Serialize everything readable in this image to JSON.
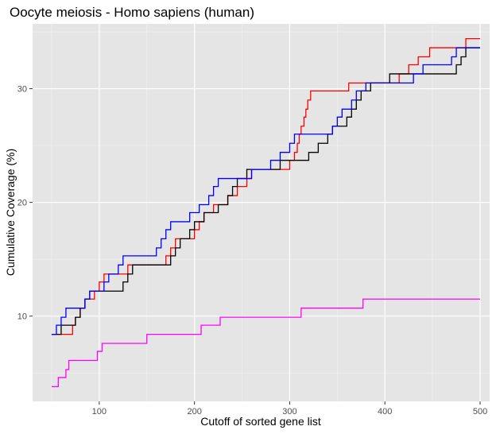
{
  "chart_data": {
    "type": "line",
    "title": "Oocyte meiosis - Homo sapiens (human)",
    "xlabel": "Cutoff of sorted gene list",
    "ylabel": "Cumulative Coverage (%)",
    "xlim": [
      30,
      510
    ],
    "ylim": [
      2.5,
      35.7
    ],
    "x_ticks": [
      100,
      200,
      300,
      400,
      500
    ],
    "y_ticks": [
      10,
      20,
      30
    ],
    "grid": true,
    "background": "#e5e5e5",
    "legend": "none",
    "series": [
      {
        "color": "#ff0000",
        "points": [
          [
            50,
            8.4
          ],
          [
            60,
            8.4
          ],
          [
            70,
            8.4
          ],
          [
            72,
            9.2
          ],
          [
            75,
            9.9
          ],
          [
            80,
            10.7
          ],
          [
            85,
            11.5
          ],
          [
            90,
            11.5
          ],
          [
            95,
            12.2
          ],
          [
            100,
            13.0
          ],
          [
            105,
            13.7
          ],
          [
            125,
            13.7
          ],
          [
            130,
            14.5
          ],
          [
            165,
            14.5
          ],
          [
            170,
            15.3
          ],
          [
            175,
            16.0
          ],
          [
            180,
            16.8
          ],
          [
            195,
            16.8
          ],
          [
            200,
            17.6
          ],
          [
            205,
            18.3
          ],
          [
            210,
            19.1
          ],
          [
            220,
            19.8
          ],
          [
            235,
            20.6
          ],
          [
            245,
            21.4
          ],
          [
            255,
            22.1
          ],
          [
            260,
            22.9
          ],
          [
            295,
            22.9
          ],
          [
            300,
            23.7
          ],
          [
            305,
            24.4
          ],
          [
            308,
            25.2
          ],
          [
            310,
            26.0
          ],
          [
            312,
            26.7
          ],
          [
            315,
            27.5
          ],
          [
            317,
            28.2
          ],
          [
            319,
            29.0
          ],
          [
            322,
            29.8
          ],
          [
            360,
            29.8
          ],
          [
            362,
            30.5
          ],
          [
            410,
            30.5
          ],
          [
            415,
            31.3
          ],
          [
            425,
            32.1
          ],
          [
            435,
            32.8
          ],
          [
            447,
            33.6
          ],
          [
            480,
            33.6
          ],
          [
            485,
            34.4
          ],
          [
            500,
            34.4
          ]
        ]
      },
      {
        "color": "#000000",
        "points": [
          [
            50,
            8.4
          ],
          [
            55,
            8.4
          ],
          [
            60,
            9.2
          ],
          [
            70,
            9.2
          ],
          [
            75,
            9.9
          ],
          [
            80,
            10.7
          ],
          [
            85,
            11.5
          ],
          [
            90,
            12.2
          ],
          [
            120,
            12.2
          ],
          [
            125,
            13.0
          ],
          [
            130,
            13.7
          ],
          [
            135,
            14.5
          ],
          [
            170,
            14.5
          ],
          [
            175,
            15.3
          ],
          [
            180,
            16.0
          ],
          [
            185,
            16.8
          ],
          [
            195,
            17.6
          ],
          [
            200,
            18.3
          ],
          [
            210,
            19.1
          ],
          [
            225,
            19.8
          ],
          [
            235,
            20.6
          ],
          [
            240,
            21.4
          ],
          [
            245,
            22.1
          ],
          [
            255,
            22.9
          ],
          [
            285,
            22.9
          ],
          [
            290,
            23.7
          ],
          [
            315,
            23.7
          ],
          [
            320,
            24.4
          ],
          [
            330,
            25.2
          ],
          [
            340,
            26.0
          ],
          [
            345,
            26.7
          ],
          [
            355,
            26.7
          ],
          [
            360,
            27.5
          ],
          [
            365,
            28.2
          ],
          [
            370,
            29.0
          ],
          [
            375,
            29.8
          ],
          [
            385,
            30.5
          ],
          [
            400,
            30.5
          ],
          [
            405,
            31.3
          ],
          [
            470,
            31.3
          ],
          [
            475,
            32.1
          ],
          [
            480,
            32.8
          ],
          [
            485,
            33.6
          ],
          [
            500,
            33.6
          ]
        ]
      },
      {
        "color": "#0000ff",
        "points": [
          [
            50,
            8.4
          ],
          [
            55,
            9.2
          ],
          [
            60,
            9.9
          ],
          [
            65,
            10.7
          ],
          [
            80,
            10.7
          ],
          [
            85,
            11.5
          ],
          [
            90,
            12.2
          ],
          [
            100,
            12.2
          ],
          [
            105,
            13.0
          ],
          [
            110,
            13.7
          ],
          [
            120,
            14.5
          ],
          [
            125,
            15.3
          ],
          [
            155,
            15.3
          ],
          [
            160,
            16.0
          ],
          [
            165,
            16.8
          ],
          [
            170,
            17.6
          ],
          [
            175,
            18.3
          ],
          [
            190,
            18.3
          ],
          [
            195,
            19.1
          ],
          [
            205,
            19.8
          ],
          [
            215,
            20.6
          ],
          [
            220,
            21.4
          ],
          [
            225,
            22.1
          ],
          [
            255,
            22.1
          ],
          [
            260,
            22.9
          ],
          [
            275,
            22.9
          ],
          [
            280,
            23.7
          ],
          [
            290,
            24.4
          ],
          [
            300,
            25.2
          ],
          [
            305,
            26.0
          ],
          [
            340,
            26.0
          ],
          [
            345,
            26.7
          ],
          [
            350,
            27.5
          ],
          [
            355,
            28.2
          ],
          [
            365,
            29.0
          ],
          [
            370,
            29.8
          ],
          [
            380,
            30.5
          ],
          [
            425,
            30.5
          ],
          [
            430,
            31.3
          ],
          [
            440,
            32.1
          ],
          [
            465,
            32.1
          ],
          [
            470,
            32.8
          ],
          [
            475,
            33.6
          ],
          [
            500,
            33.6
          ]
        ]
      },
      {
        "color": "#ff00ff",
        "points": [
          [
            50,
            3.8
          ],
          [
            55,
            3.8
          ],
          [
            57,
            4.6
          ],
          [
            62,
            4.6
          ],
          [
            65,
            5.3
          ],
          [
            68,
            6.1
          ],
          [
            95,
            6.1
          ],
          [
            98,
            6.9
          ],
          [
            103,
            7.6
          ],
          [
            148,
            7.6
          ],
          [
            150,
            8.4
          ],
          [
            205,
            8.4
          ],
          [
            207,
            9.2
          ],
          [
            225,
            9.2
          ],
          [
            227,
            9.9
          ],
          [
            310,
            9.9
          ],
          [
            312,
            10.7
          ],
          [
            375,
            10.7
          ],
          [
            377,
            11.5
          ],
          [
            500,
            11.5
          ]
        ]
      }
    ]
  }
}
